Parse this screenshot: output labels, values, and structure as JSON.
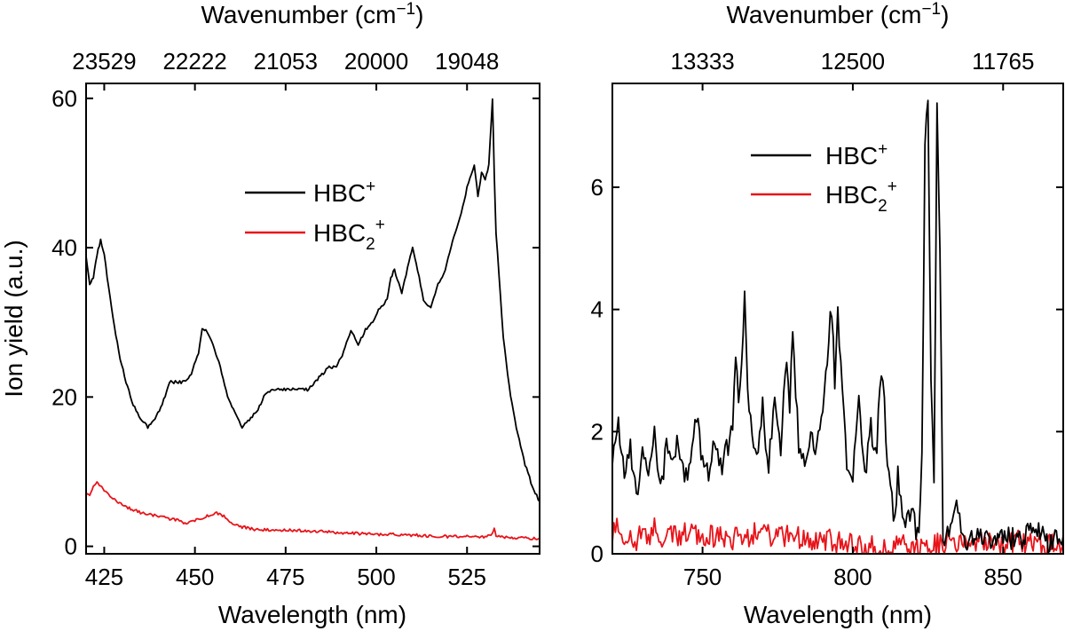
{
  "chart_data": [
    {
      "type": "line",
      "xlabel": "Wavelength (nm)",
      "x_top_label": "Wavenumber (cm",
      "x_top_label_sup": "−1",
      "x_top_label_end": ")",
      "ylabel": "Ion yield (a.u.)",
      "xlim": [
        420,
        545
      ],
      "ylim": [
        -1,
        62
      ],
      "x_ticks": [
        425,
        450,
        475,
        500,
        525
      ],
      "x_tick_labels": [
        "425",
        "450",
        "475",
        "500",
        "525"
      ],
      "y_ticks": [
        0,
        20,
        40,
        60
      ],
      "y_tick_labels": [
        "0",
        "20",
        "40",
        "60"
      ],
      "top_ticks": [
        425,
        450,
        475,
        500,
        525
      ],
      "top_tick_labels": [
        "23529",
        "22222",
        "21053",
        "20000",
        "19048"
      ],
      "legend_position": "center",
      "series": [
        {
          "name": "HBC+",
          "name_main": "HBC",
          "name_sup": "+",
          "name_sub": "",
          "color": "#000000",
          "x": [
            420,
            421,
            422,
            423,
            424,
            425,
            427,
            429,
            431,
            433,
            435,
            437,
            439,
            441,
            443,
            445,
            447,
            449,
            451,
            452,
            453,
            455,
            457,
            459,
            461,
            463,
            465,
            467,
            469,
            471,
            473,
            475,
            477,
            479,
            481,
            483,
            485,
            487,
            489,
            491,
            493,
            495,
            497,
            499,
            501,
            503,
            504,
            505,
            507,
            509,
            510,
            511,
            513,
            515,
            517,
            519,
            521,
            523,
            525,
            527,
            528,
            529,
            530,
            531,
            532,
            532.5,
            533,
            535,
            537,
            539,
            541,
            543,
            545
          ],
          "y": [
            39,
            35,
            36,
            39,
            41,
            39,
            32,
            26,
            22,
            19,
            17,
            16,
            17,
            19,
            22,
            22,
            22,
            23,
            26,
            29,
            29,
            27,
            24,
            20,
            18,
            16,
            17,
            18,
            20,
            21,
            21,
            21,
            21,
            21,
            21,
            22,
            23,
            24,
            24,
            26,
            29,
            27,
            29,
            30,
            32,
            33,
            36,
            37,
            34,
            38,
            40,
            38,
            33,
            32,
            35,
            37,
            41,
            44,
            48,
            51,
            47,
            50,
            49,
            51,
            60,
            50,
            42,
            28,
            20,
            15,
            11,
            8,
            6
          ]
        },
        {
          "name": "HBC2+",
          "name_main": "HBC",
          "name_sup": "+",
          "name_sub": "2",
          "color": "#e8141a",
          "x": [
            420,
            421,
            422,
            423,
            424,
            425,
            427,
            430,
            435,
            440,
            445,
            448,
            450,
            453,
            456,
            458,
            460,
            463,
            466,
            470,
            475,
            480,
            485,
            490,
            495,
            500,
            505,
            510,
            515,
            520,
            525,
            530,
            532,
            532.5,
            533,
            535,
            540,
            545
          ],
          "y": [
            7,
            7,
            8,
            8.5,
            8,
            7.5,
            6.5,
            5.5,
            4.5,
            4,
            3.5,
            3,
            3.5,
            4,
            4.5,
            4,
            3.2,
            2.6,
            2.3,
            2.2,
            2.2,
            2.1,
            2,
            1.8,
            1.7,
            1.6,
            1.6,
            1.5,
            1.4,
            1.3,
            1.3,
            1.3,
            1.6,
            2.5,
            1.4,
            1.2,
            1.1,
            1
          ]
        }
      ]
    },
    {
      "type": "line",
      "xlabel": "Wavelength (nm)",
      "x_top_label": "Wavenumber (cm",
      "x_top_label_sup": "−1",
      "x_top_label_end": ")",
      "ylabel": "",
      "xlim": [
        720,
        870
      ],
      "ylim": [
        0,
        7.7
      ],
      "x_ticks": [
        750,
        800,
        850
      ],
      "x_tick_labels": [
        "750",
        "800",
        "850"
      ],
      "y_ticks": [
        0,
        2,
        4,
        6
      ],
      "y_tick_labels": [
        "0",
        "2",
        "4",
        "6"
      ],
      "top_ticks": [
        750,
        800,
        850
      ],
      "top_tick_labels": [
        "13333",
        "12500",
        "11765"
      ],
      "legend_position": "top-center",
      "series": [
        {
          "name": "HBC+",
          "name_main": "HBC",
          "name_sup": "+",
          "name_sub": "",
          "color": "#000000",
          "x": [
            720,
            722,
            724,
            726,
            728,
            730,
            732,
            734,
            736,
            738,
            740,
            742,
            744,
            746,
            748,
            750,
            752,
            754,
            756,
            758,
            760,
            761,
            762,
            763,
            764,
            765,
            766,
            768,
            770,
            772,
            774,
            776,
            778,
            779,
            780,
            782,
            784,
            786,
            788,
            790,
            792,
            793,
            794,
            795,
            796,
            797,
            798,
            800,
            802,
            804,
            806,
            808,
            809,
            810,
            811,
            812,
            814,
            815,
            816,
            818,
            820,
            821,
            822,
            823,
            824,
            825,
            826,
            827,
            828,
            829,
            830,
            832,
            834,
            836,
            838,
            840,
            842,
            845,
            850,
            855,
            860,
            865,
            870
          ],
          "y": [
            1.5,
            2.1,
            1.2,
            1.8,
            0.9,
            1.6,
            1.3,
            2,
            1.1,
            1.7,
            1.4,
            1.9,
            1.2,
            1.6,
            2.2,
            1.5,
            1.3,
            1.8,
            1.4,
            1.7,
            2,
            3.4,
            2.6,
            3,
            4.4,
            2.8,
            2.2,
            1.6,
            2.4,
            1.4,
            2.7,
            1.7,
            3.3,
            2.4,
            3.6,
            1.8,
            1.4,
            2,
            1.7,
            2.3,
            3.6,
            3.95,
            2.8,
            3.9,
            3.2,
            2.4,
            1.4,
            1.2,
            2.5,
            1.3,
            2.1,
            1.5,
            2.9,
            3,
            1.8,
            1.2,
            0.5,
            1.4,
            0.8,
            0.5,
            0.6,
            0.4,
            0.5,
            1.6,
            6.6,
            7.5,
            3,
            1.2,
            7.3,
            5,
            0.3,
            0.4,
            0.8,
            0.5,
            0.2,
            0.3,
            0.4,
            0.25,
            0.3,
            0.2,
            0.4,
            0.2,
            0.3
          ]
        },
        {
          "name": "HBC2+",
          "name_main": "HBC",
          "name_sup": "+",
          "name_sub": "2",
          "color": "#e8141a",
          "x": [
            720,
            722,
            724,
            726,
            728,
            730,
            732,
            734,
            736,
            740,
            745,
            750,
            755,
            760,
            765,
            770,
            775,
            780,
            785,
            790,
            795,
            800,
            805,
            810,
            815,
            820,
            825,
            830,
            835,
            840,
            845,
            850,
            855,
            860,
            865,
            870
          ],
          "y": [
            0.3,
            0.55,
            0.1,
            0.4,
            0.2,
            0.5,
            0.15,
            0.45,
            0.2,
            0.3,
            0.35,
            0.25,
            0.3,
            0.25,
            0.3,
            0.35,
            0.25,
            0.3,
            0.2,
            0.25,
            0.2,
            0.15,
            0.15,
            0.12,
            0.12,
            0.12,
            0.15,
            0.15,
            0.2,
            0.2,
            0.2,
            0.15,
            0.2,
            0.15,
            0.15,
            0.15
          ]
        }
      ]
    }
  ]
}
